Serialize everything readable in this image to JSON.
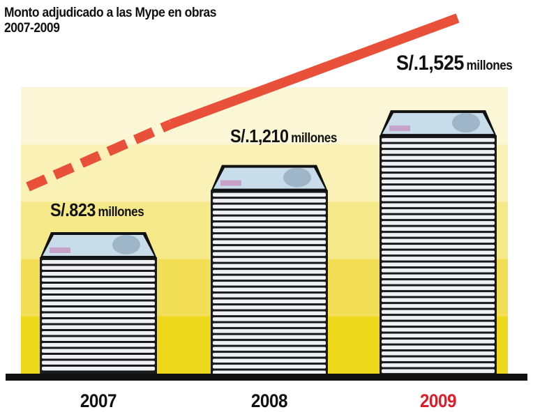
{
  "chart_data": {
    "type": "bar",
    "title_line1": "Monto adjudicado a las Mype en obras",
    "title_line2": "2007-2009",
    "categories": [
      "2007",
      "2008",
      "2009"
    ],
    "values": [
      823,
      1210,
      1525
    ],
    "value_labels": [
      {
        "prefix": "S/.823",
        "unit": "millones"
      },
      {
        "prefix": "S/.1,210",
        "unit": "millones"
      },
      {
        "prefix": "S/.1,525",
        "unit": "millones"
      }
    ],
    "ylim": [
      0,
      1650
    ],
    "category_colors": [
      "#111111",
      "#111111",
      "#d8202c"
    ],
    "trend_color": "#e8503a",
    "band_colors": [
      "#fbf7d6",
      "#f9f1b6",
      "#f6e98a",
      "#f2df55",
      "#eed81c"
    ]
  }
}
